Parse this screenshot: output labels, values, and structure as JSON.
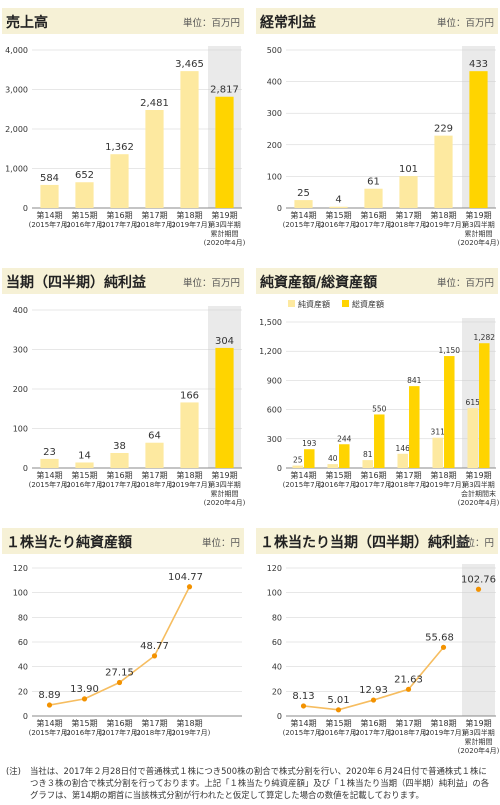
{
  "colors": {
    "forecast": "#ffd400",
    "actual": "#fde9a0",
    "header": "#f6f1d6",
    "grid": "#cfcfcf",
    "band": "#eaeaea",
    "line": "#f6bd60",
    "dot": "#f39200"
  },
  "charts": [
    {
      "title": "売上高",
      "unit": "単位：百万円",
      "chart_data": {
        "type": "bar",
        "categories": [
          [
            "第14期",
            "(2015年7月)"
          ],
          [
            "第15期",
            "(2016年7月)"
          ],
          [
            "第16期",
            "(2017年7月)"
          ],
          [
            "第17期",
            "(2018年7月)"
          ],
          [
            "第18期",
            "(2019年7月)"
          ],
          [
            "第19期",
            "第3四半期",
            "累計期間",
            "(2020年4月)"
          ]
        ],
        "values": [
          584,
          652,
          1362,
          2481,
          3465,
          2817
        ],
        "value_labels": [
          "584",
          "652",
          "1,362",
          "2,481",
          "3,465",
          "2,817"
        ],
        "yticks": [
          "0",
          "1,000",
          "2,000",
          "3,000",
          "4,000"
        ],
        "ylim": [
          0,
          4000
        ]
      }
    },
    {
      "title": "経常利益",
      "unit": "単位：百万円",
      "chart_data": {
        "type": "bar",
        "categories": [
          [
            "第14期",
            "(2015年7月)"
          ],
          [
            "第15期",
            "(2016年7月)"
          ],
          [
            "第16期",
            "(2017年7月)"
          ],
          [
            "第17期",
            "(2018年7月)"
          ],
          [
            "第18期",
            "(2019年7月)"
          ],
          [
            "第19期",
            "第3四半期",
            "累計期間",
            "(2020年4月)"
          ]
        ],
        "values": [
          25,
          4,
          61,
          101,
          229,
          433
        ],
        "value_labels": [
          "25",
          "4",
          "61",
          "101",
          "229",
          "433"
        ],
        "yticks": [
          "0",
          "100",
          "200",
          "300",
          "400",
          "500"
        ],
        "ylim": [
          0,
          500
        ]
      }
    },
    {
      "title": "当期（四半期）純利益",
      "unit": "単位：百万円",
      "chart_data": {
        "type": "bar",
        "categories": [
          [
            "第14期",
            "(2015年7月)"
          ],
          [
            "第15期",
            "(2016年7月)"
          ],
          [
            "第16期",
            "(2017年7月)"
          ],
          [
            "第17期",
            "(2018年7月)"
          ],
          [
            "第18期",
            "(2019年7月)"
          ],
          [
            "第19期",
            "第3四半期",
            "累計期間",
            "(2020年4月)"
          ]
        ],
        "values": [
          23,
          14,
          38,
          64,
          166,
          304
        ],
        "value_labels": [
          "23",
          "14",
          "38",
          "64",
          "166",
          "304"
        ],
        "yticks": [
          "0",
          "100",
          "200",
          "300",
          "400"
        ],
        "ylim": [
          0,
          400
        ]
      }
    },
    {
      "title": "純資産額/総資産額",
      "unit": "単位：百万円",
      "chart_data": {
        "type": "bar",
        "categories": [
          [
            "第14期",
            "(2015年7月)"
          ],
          [
            "第15期",
            "(2016年7月)"
          ],
          [
            "第16期",
            "(2017年7月)"
          ],
          [
            "第17期",
            "(2018年7月)"
          ],
          [
            "第18期",
            "(2019年7月)"
          ],
          [
            "第19期",
            "第3四半期",
            "会計期間末",
            "(2020年4月)"
          ]
        ],
        "series": [
          {
            "name": "純資産額",
            "values": [
              25,
              40,
              81,
              146,
              311,
              615
            ],
            "value_labels": [
              "25",
              "40",
              "81",
              "146",
              "311",
              "615"
            ]
          },
          {
            "name": "総資産額",
            "values": [
              193,
              244,
              550,
              841,
              1150,
              1282
            ],
            "value_labels": [
              "193",
              "244",
              "550",
              "841",
              "1,150",
              "1,282"
            ]
          }
        ],
        "yticks": [
          "0",
          "300",
          "600",
          "900",
          "1,200",
          "1,500"
        ],
        "ylim": [
          0,
          1500
        ],
        "legend": "top-left"
      }
    },
    {
      "title": "１株当たり純資産額",
      "unit": "単位：円",
      "chart_data": {
        "type": "line",
        "categories": [
          [
            "第14期",
            "(2015年7月)"
          ],
          [
            "第15期",
            "(2016年7月)"
          ],
          [
            "第16期",
            "(2017年7月)"
          ],
          [
            "第17期",
            "(2018年7月)"
          ],
          [
            "第18期",
            "(2019年7月)"
          ]
        ],
        "values": [
          8.89,
          13.9,
          27.15,
          48.77,
          104.77
        ],
        "value_labels": [
          "8.89",
          "13.90",
          "27.15",
          "48.77",
          "104.77"
        ],
        "yticks": [
          "0",
          "20",
          "40",
          "60",
          "80",
          "100",
          "120"
        ],
        "ylim": [
          0,
          120
        ]
      }
    },
    {
      "title": "１株当たり当期（四半期）純利益",
      "unit": "単位：円",
      "chart_data": {
        "type": "line",
        "categories": [
          [
            "第14期",
            "(2015年7月)"
          ],
          [
            "第15期",
            "(2016年7月)"
          ],
          [
            "第16期",
            "(2017年7月)"
          ],
          [
            "第17期",
            "(2018年7月)"
          ],
          [
            "第18期",
            "(2019年7月)"
          ],
          [
            "第19期",
            "第3四半期",
            "累計期間",
            "(2020年4月)"
          ]
        ],
        "values": [
          8.13,
          5.01,
          12.93,
          21.63,
          55.68,
          102.76
        ],
        "value_labels": [
          "8.13",
          "5.01",
          "12.93",
          "21.63",
          "55.68",
          "102.76"
        ],
        "yticks": [
          "0",
          "20",
          "40",
          "60",
          "80",
          "100",
          "120"
        ],
        "ylim": [
          0,
          120
        ]
      }
    }
  ],
  "note": {
    "prefix": "(注)",
    "text": "当社は、2017年２月28日付で普通株式１株につき500株の割合で株式分割を行い、2020年６月24日付で普通株式１株につき３株の割合で株式分割を行っております。上記「１株当たり純資産額」及び「１株当たり当期（四半期）純利益」の各グラフは、第14期の期首に当該株式分割が行われたと仮定して算定した場合の数値を記載しております。"
  }
}
